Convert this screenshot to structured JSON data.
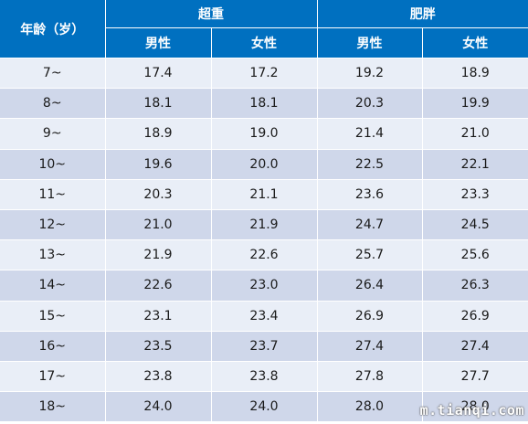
{
  "table": {
    "header": {
      "age": "年龄（岁）",
      "overweight": "超重",
      "obese": "肥胖",
      "male": "男性",
      "female": "女性"
    },
    "rows": [
      {
        "age": "7~",
        "ow_male": "17.4",
        "ow_female": "17.2",
        "ob_male": "19.2",
        "ob_female": "18.9"
      },
      {
        "age": "8~",
        "ow_male": "18.1",
        "ow_female": "18.1",
        "ob_male": "20.3",
        "ob_female": "19.9"
      },
      {
        "age": "9~",
        "ow_male": "18.9",
        "ow_female": "19.0",
        "ob_male": "21.4",
        "ob_female": "21.0"
      },
      {
        "age": "10~",
        "ow_male": "19.6",
        "ow_female": "20.0",
        "ob_male": "22.5",
        "ob_female": "22.1"
      },
      {
        "age": "11~",
        "ow_male": "20.3",
        "ow_female": "21.1",
        "ob_male": "23.6",
        "ob_female": "23.3"
      },
      {
        "age": "12~",
        "ow_male": "21.0",
        "ow_female": "21.9",
        "ob_male": "24.7",
        "ob_female": "24.5"
      },
      {
        "age": "13~",
        "ow_male": "21.9",
        "ow_female": "22.6",
        "ob_male": "25.7",
        "ob_female": "25.6"
      },
      {
        "age": "14~",
        "ow_male": "22.6",
        "ow_female": "23.0",
        "ob_male": "26.4",
        "ob_female": "26.3"
      },
      {
        "age": "15~",
        "ow_male": "23.1",
        "ow_female": "23.4",
        "ob_male": "26.9",
        "ob_female": "26.9"
      },
      {
        "age": "16~",
        "ow_male": "23.5",
        "ow_female": "23.7",
        "ob_male": "27.4",
        "ob_female": "27.4"
      },
      {
        "age": "17~",
        "ow_male": "23.8",
        "ow_female": "23.8",
        "ob_male": "27.8",
        "ob_female": "27.7"
      },
      {
        "age": "18~",
        "ow_male": "24.0",
        "ow_female": "24.0",
        "ob_male": "28.0",
        "ob_female": "28.0"
      }
    ]
  },
  "watermark": "m.tianqi.com",
  "colors": {
    "header_bg": "#0070c0",
    "row_light": "#e9eef7",
    "row_dark": "#cfd7ea"
  }
}
